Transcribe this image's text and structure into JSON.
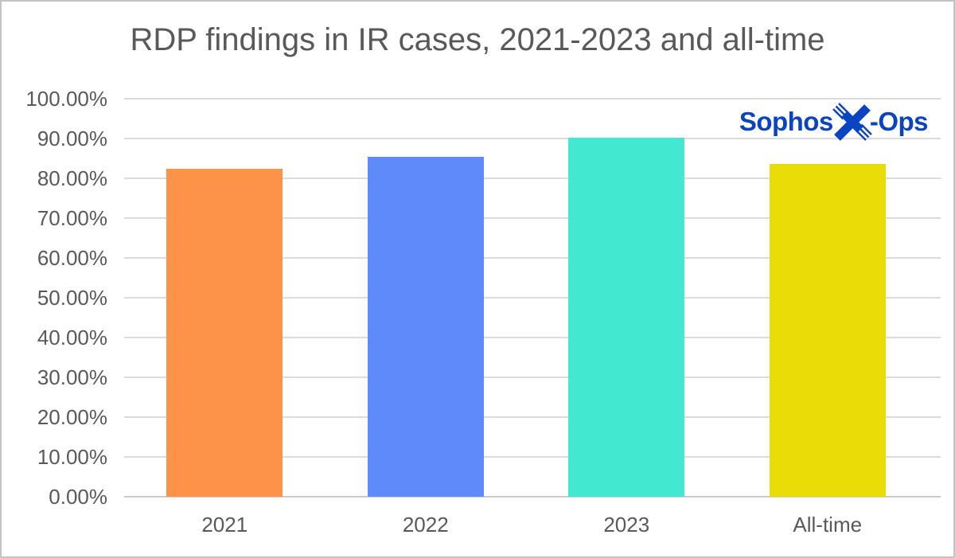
{
  "window": {
    "background": "#ffffff",
    "border_color": "#c4c4c4"
  },
  "chart_data": {
    "type": "bar",
    "title": "RDP findings in IR cases, 2021-2023 and all-time",
    "categories": [
      "2021",
      "2022",
      "2023",
      "All-time"
    ],
    "values": [
      82.5,
      85.5,
      90.2,
      83.7
    ],
    "value_unit": "%",
    "bar_colors": [
      "#fd9349",
      "#5f8bfa",
      "#42e8d0",
      "#e9dc07"
    ],
    "ylim": [
      0,
      100
    ],
    "ytick_step": 10,
    "ytick_labels": [
      "0.00%",
      "10.00%",
      "20.00%",
      "30.00%",
      "40.00%",
      "50.00%",
      "60.00%",
      "70.00%",
      "80.00%",
      "90.00%",
      "100.00%"
    ],
    "xlabel": "",
    "ylabel": "",
    "grid": true,
    "legend": "none"
  },
  "logo": {
    "brand_left": "Sophos",
    "brand_right": "-Ops",
    "icon": "x-ops-x-icon",
    "color": "#0a44c0"
  },
  "style": {
    "title_color": "#595959",
    "axis_label_color": "#595959",
    "gridline_color": "#dcdcdc",
    "axis_line_color": "#c9c9c9"
  }
}
